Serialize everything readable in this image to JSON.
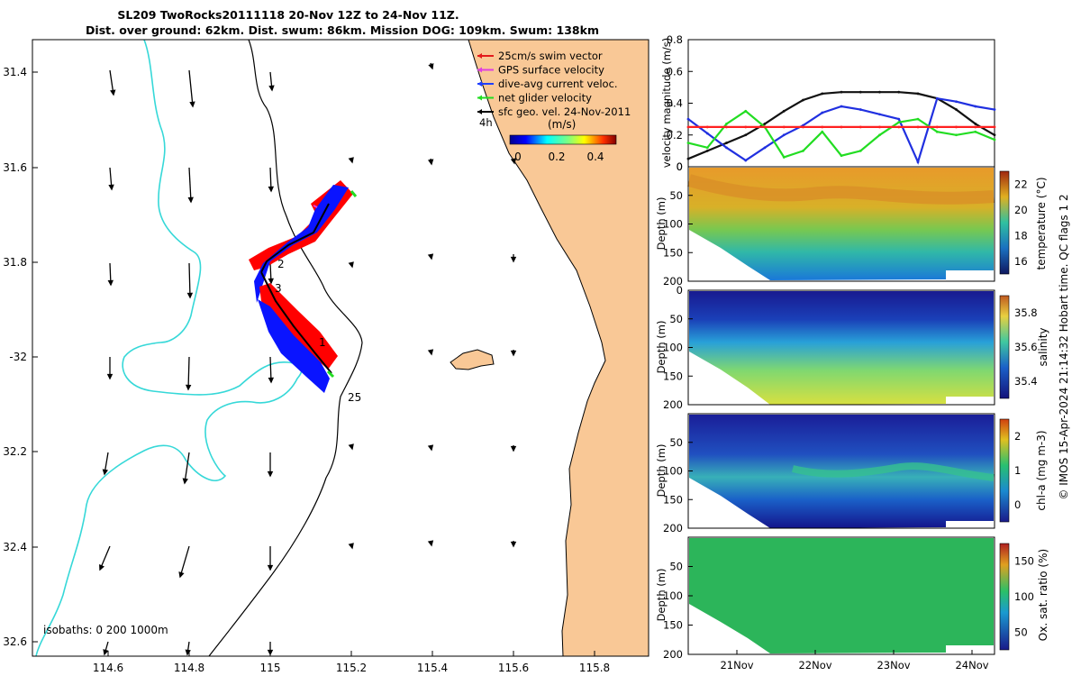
{
  "map": {
    "title_line1": "SL209 TwoRocks20111118 20-Nov 12Z to 24-Nov 11Z.",
    "title_line2": "Dist. over ground: 62km. Dist. swum: 86km. Mission DOG: 109km. Swum: 138km",
    "lat_ticks": [
      "31.4",
      "31.6",
      "31.8",
      "-32",
      "32.2",
      "32.4",
      "32.6"
    ],
    "lon_ticks": [
      "114.6",
      "114.8",
      "115",
      "115.2",
      "115.4",
      "115.6",
      "115.8"
    ],
    "legend": [
      {
        "label": "25cm/s swim vector",
        "color": "#e31a1c"
      },
      {
        "label": "GPS surface velocity",
        "color": "#e040e0"
      },
      {
        "label": "dive-avg current veloc.",
        "color": "#1f3fff"
      },
      {
        "label": "net glider velocity",
        "color": "#22dd22"
      },
      {
        "label": "sfc geo. vel. 24-Nov-2011",
        "color": "#000000"
      }
    ],
    "scale_label": "4h",
    "colorbar_title": "(m/s)",
    "colorbar_ticks": [
      "0",
      "0.2",
      "0.4"
    ],
    "track_labels": [
      "2",
      "3",
      "1",
      "25"
    ],
    "isobaths_label": "isobaths: 0   200  1000m",
    "colors": {
      "land": "#f9c896",
      "isobath_200": "#36d8d8",
      "track_red": "#ff0000",
      "track_blue": "#0a14ff"
    }
  },
  "chart_data": [
    {
      "type": "line",
      "ylabel": "velocity magnitude (m/s)",
      "ylim": [
        0,
        0.8
      ],
      "yticks": [
        "0",
        "0.2",
        "0.4",
        "0.6",
        "0.8"
      ],
      "x": [
        0,
        0.25,
        0.5,
        0.75,
        1,
        1.25,
        1.5,
        1.75,
        2,
        2.25,
        2.5,
        2.75,
        3,
        3.25,
        3.5,
        3.75,
        4
      ],
      "series": [
        {
          "color": "#111111",
          "values": [
            0.05,
            0.1,
            0.15,
            0.2,
            0.27,
            0.35,
            0.42,
            0.46,
            0.47,
            0.47,
            0.47,
            0.47,
            0.46,
            0.43,
            0.36,
            0.27,
            0.2
          ]
        },
        {
          "color": "#2030e0",
          "values": [
            0.3,
            0.21,
            0.12,
            0.04,
            0.12,
            0.2,
            0.26,
            0.34,
            0.38,
            0.36,
            0.33,
            0.3,
            0.03,
            0.43,
            0.41,
            0.38,
            0.36
          ]
        },
        {
          "color": "#22dd22",
          "values": [
            0.15,
            0.12,
            0.27,
            0.35,
            0.25,
            0.06,
            0.1,
            0.22,
            0.07,
            0.1,
            0.2,
            0.28,
            0.3,
            0.22,
            0.2,
            0.22,
            0.17
          ]
        },
        {
          "color": "#ff2020",
          "values": [
            0.25,
            0.25,
            0.25,
            0.25,
            0.25,
            0.25,
            0.25,
            0.25,
            0.25,
            0.25,
            0.25,
            0.25,
            0.25,
            0.25,
            0.25,
            0.25,
            0.25
          ]
        }
      ]
    },
    {
      "type": "heatmap",
      "variable": "temperature",
      "colorbar_label": "temperature (°C)",
      "ylabel": "Depth (m)",
      "ylim": [
        200,
        0
      ],
      "yticks": [
        "0",
        "50",
        "100",
        "150",
        "200"
      ],
      "cticks": [
        "16",
        "18",
        "20",
        "22"
      ]
    },
    {
      "type": "heatmap",
      "variable": "salinity",
      "colorbar_label": "salinity",
      "ylabel": "Depth (m)",
      "ylim": [
        200,
        0
      ],
      "yticks": [
        "0",
        "50",
        "100",
        "150",
        "200"
      ],
      "cticks": [
        "35.4",
        "35.6",
        "35.8"
      ]
    },
    {
      "type": "heatmap",
      "variable": "chl-a",
      "colorbar_label": "chl-a (mg m-3)",
      "ylabel": "Depth (m)",
      "ylim": [
        200,
        0
      ],
      "yticks": [
        "50",
        "100",
        "150",
        "200"
      ],
      "cticks": [
        "0",
        "1",
        "2"
      ]
    },
    {
      "type": "heatmap",
      "variable": "oxygen",
      "colorbar_label": "Ox. sat. ratio (%)",
      "ylabel": "Depth (m)",
      "ylim": [
        200,
        0
      ],
      "yticks": [
        "50",
        "100",
        "150",
        "200"
      ],
      "cticks": [
        "50",
        "100",
        "150"
      ]
    }
  ],
  "time_ticks": [
    "21Nov",
    "22Nov",
    "23Nov",
    "24Nov"
  ],
  "side_note": "© IMOS 15-Apr-2024 21:14:32 Hobart time. QC flags 1  2"
}
